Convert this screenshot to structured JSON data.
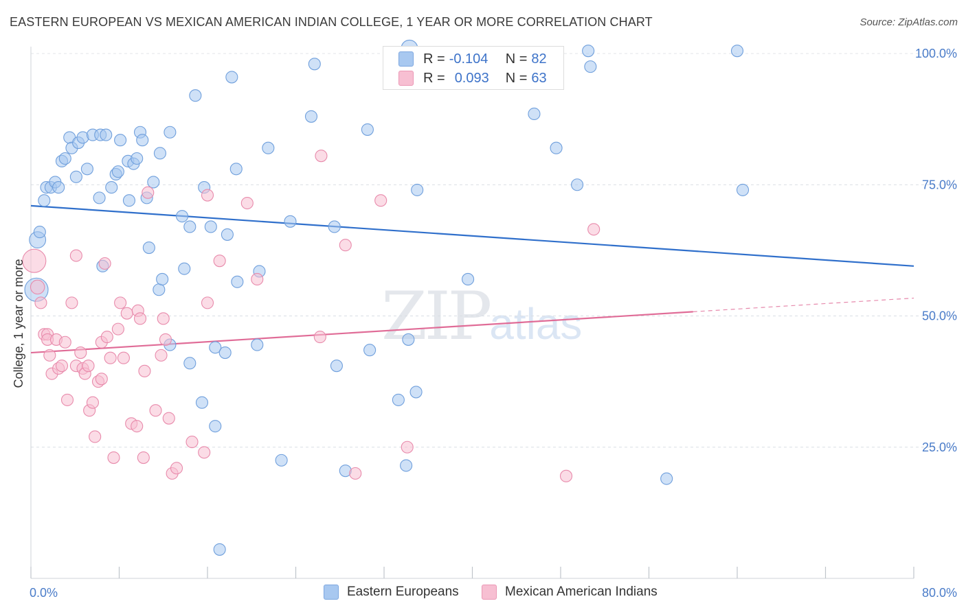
{
  "header": {
    "title": "EASTERN EUROPEAN VS MEXICAN AMERICAN INDIAN COLLEGE, 1 YEAR OR MORE CORRELATION CHART",
    "source": "Source: ZipAtlas.com"
  },
  "watermark": {
    "zip": "ZIP",
    "atlas": "atlas"
  },
  "legend_top": {
    "rows": [
      {
        "r_label": "R =",
        "r_value": "-0.104",
        "n_label": "N =",
        "n_value": "82",
        "color": "#a8c8f0"
      },
      {
        "r_label": "R =",
        "r_value": "0.093",
        "n_label": "N =",
        "n_value": "63",
        "color": "#f7bfd2"
      }
    ]
  },
  "legend_bottom": {
    "items": [
      {
        "label": "Eastern Europeans",
        "color": "#a8c8f0"
      },
      {
        "label": "Mexican American Indians",
        "color": "#f7bfd2"
      }
    ]
  },
  "chart_data": {
    "type": "scatter",
    "title": "EASTERN EUROPEAN VS MEXICAN AMERICAN INDIAN COLLEGE, 1 YEAR OR MORE CORRELATION CHART",
    "xlabel": "",
    "ylabel": "College, 1 year or more",
    "xlim": [
      0,
      80
    ],
    "ylim": [
      0,
      105
    ],
    "x_tick_labels": {
      "min": "0.0%",
      "max": "80.0%"
    },
    "y_ticks": [
      {
        "value": 25,
        "label": "25.0%"
      },
      {
        "value": 50,
        "label": "50.0%"
      },
      {
        "value": 75,
        "label": "75.0%"
      },
      {
        "value": 100,
        "label": "100.0%"
      }
    ],
    "grid": true,
    "series": [
      {
        "name": "Eastern Europeans",
        "color": "#6f9fdc",
        "fill": "#a8c8f0",
        "trend": {
          "x0": 0,
          "y0": 71.0,
          "x1": 80,
          "y1": 59.5
        },
        "points": [
          [
            0.5,
            55,
            2
          ],
          [
            0.6,
            64.5,
            1.4
          ],
          [
            0.8,
            66,
            1
          ],
          [
            1.2,
            72,
            1
          ],
          [
            1.4,
            74.5,
            1
          ],
          [
            1.8,
            74.5,
            1
          ],
          [
            2.2,
            75.5,
            1
          ],
          [
            2.5,
            74.5,
            1
          ],
          [
            2.8,
            79.5,
            1
          ],
          [
            3.1,
            80,
            1
          ],
          [
            3.5,
            84,
            1
          ],
          [
            3.7,
            82,
            1
          ],
          [
            4.1,
            76.5,
            1
          ],
          [
            4.3,
            83,
            1
          ],
          [
            4.7,
            84,
            1
          ],
          [
            5.1,
            78,
            1
          ],
          [
            5.6,
            84.5,
            1
          ],
          [
            6.3,
            84.5,
            1
          ],
          [
            6.2,
            72.5,
            1
          ],
          [
            6.5,
            59.5,
            1
          ],
          [
            6.8,
            84.5,
            1
          ],
          [
            7.3,
            74.5,
            1
          ],
          [
            7.7,
            77,
            1
          ],
          [
            7.9,
            77.5,
            1
          ],
          [
            8.1,
            83.5,
            1
          ],
          [
            8.8,
            79.5,
            1
          ],
          [
            8.9,
            72,
            1
          ],
          [
            9.3,
            79,
            1
          ],
          [
            9.6,
            80,
            1
          ],
          [
            9.9,
            85,
            1
          ],
          [
            10.1,
            83.5,
            1
          ],
          [
            10.5,
            72.5,
            1
          ],
          [
            10.7,
            63,
            1
          ],
          [
            11.1,
            75.5,
            1
          ],
          [
            11.6,
            55,
            1
          ],
          [
            11.7,
            81,
            1
          ],
          [
            11.9,
            57,
            1
          ],
          [
            12.6,
            85,
            1
          ],
          [
            12.6,
            44.5,
            1
          ],
          [
            13.7,
            69,
            1
          ],
          [
            13.9,
            59,
            1
          ],
          [
            14.4,
            41,
            1
          ],
          [
            14.9,
            92,
            1
          ],
          [
            15.5,
            33.5,
            1
          ],
          [
            15.7,
            74.5,
            1
          ],
          [
            16.3,
            67,
            1
          ],
          [
            16.7,
            29,
            1
          ],
          [
            16.7,
            44,
            1
          ],
          [
            17.1,
            5.5,
            1
          ],
          [
            17.6,
            43,
            1
          ],
          [
            17.8,
            65.5,
            1
          ],
          [
            18.2,
            95.5,
            1
          ],
          [
            18.6,
            78,
            1
          ],
          [
            18.7,
            56.5,
            1
          ],
          [
            20.5,
            44.5,
            1
          ],
          [
            20.7,
            58.5,
            1
          ],
          [
            21.5,
            82,
            1
          ],
          [
            22.7,
            22.5,
            1
          ],
          [
            23.5,
            68,
            1
          ],
          [
            25.4,
            88,
            1
          ],
          [
            25.7,
            98,
            1
          ],
          [
            27.5,
            67,
            1
          ],
          [
            27.7,
            40.5,
            1
          ],
          [
            28.5,
            20.5,
            1
          ],
          [
            30.5,
            85.5,
            1
          ],
          [
            30.7,
            43.5,
            1
          ],
          [
            33.3,
            34,
            1
          ],
          [
            34.0,
            21.5,
            1
          ],
          [
            34.2,
            45.5,
            1
          ],
          [
            34.3,
            101,
            1.4
          ],
          [
            34.9,
            35.5,
            1
          ],
          [
            35.0,
            74,
            1
          ],
          [
            39.6,
            57,
            1
          ],
          [
            45.6,
            88.5,
            1
          ],
          [
            47.6,
            82,
            1
          ],
          [
            49.5,
            75,
            1
          ],
          [
            50.5,
            100.5,
            1
          ],
          [
            50.7,
            97.5,
            1
          ],
          [
            57.6,
            19,
            1
          ],
          [
            64.0,
            100.5,
            1
          ],
          [
            64.5,
            74,
            1
          ],
          [
            14.4,
            67,
            1
          ]
        ]
      },
      {
        "name": "Mexican American Indians",
        "color": "#e88aab",
        "fill": "#f7bfd2",
        "trend": {
          "x0": 0,
          "y0": 43.0,
          "x1": 60,
          "y1": 50.8,
          "dash_to": {
            "x": 80,
            "y": 53.4
          }
        },
        "points": [
          [
            0.3,
            60.5,
            2
          ],
          [
            0.6,
            55.5,
            1.2
          ],
          [
            0.9,
            52.5,
            1
          ],
          [
            1.2,
            46.5,
            1
          ],
          [
            1.5,
            46.5,
            1
          ],
          [
            1.5,
            45.5,
            1
          ],
          [
            1.7,
            42.5,
            1
          ],
          [
            1.9,
            39,
            1
          ],
          [
            2.3,
            45.5,
            1
          ],
          [
            2.5,
            40,
            1
          ],
          [
            2.8,
            40.5,
            1
          ],
          [
            3.1,
            45,
            1
          ],
          [
            3.3,
            34,
            1
          ],
          [
            3.7,
            52.5,
            1
          ],
          [
            4.1,
            40.5,
            1
          ],
          [
            4.1,
            61.5,
            1
          ],
          [
            4.5,
            43,
            1
          ],
          [
            4.7,
            40,
            1
          ],
          [
            4.9,
            39,
            1
          ],
          [
            5.2,
            40.5,
            1
          ],
          [
            5.3,
            32,
            1
          ],
          [
            5.6,
            33.5,
            1
          ],
          [
            5.8,
            27,
            1
          ],
          [
            6.1,
            37.5,
            1
          ],
          [
            6.4,
            38,
            1
          ],
          [
            6.4,
            45,
            1
          ],
          [
            6.7,
            60,
            1
          ],
          [
            6.9,
            46,
            1
          ],
          [
            7.2,
            42,
            1
          ],
          [
            7.5,
            23,
            1
          ],
          [
            7.9,
            47.5,
            1
          ],
          [
            8.1,
            52.5,
            1
          ],
          [
            8.4,
            42,
            1
          ],
          [
            8.7,
            50.5,
            1
          ],
          [
            9.1,
            29.5,
            1
          ],
          [
            9.6,
            29,
            1
          ],
          [
            9.7,
            51,
            1
          ],
          [
            9.9,
            49.5,
            1
          ],
          [
            10.2,
            23,
            1
          ],
          [
            10.3,
            39.5,
            1
          ],
          [
            10.6,
            73.5,
            1
          ],
          [
            11.3,
            32,
            1
          ],
          [
            11.8,
            42.5,
            1
          ],
          [
            12.0,
            49.5,
            1
          ],
          [
            12.2,
            45.5,
            1
          ],
          [
            12.5,
            30.5,
            1
          ],
          [
            12.8,
            20,
            1
          ],
          [
            13.2,
            21,
            1
          ],
          [
            14.6,
            26,
            1
          ],
          [
            15.7,
            24,
            1
          ],
          [
            16.0,
            73,
            1
          ],
          [
            16.0,
            52.5,
            1
          ],
          [
            17.1,
            60.5,
            1
          ],
          [
            19.6,
            71.5,
            1
          ],
          [
            20.5,
            57,
            1
          ],
          [
            26.2,
            46,
            1
          ],
          [
            26.3,
            80.5,
            1
          ],
          [
            28.5,
            63.5,
            1
          ],
          [
            29.4,
            20,
            1
          ],
          [
            31.7,
            72,
            1
          ],
          [
            34.1,
            25,
            1
          ],
          [
            48.5,
            19.5,
            1
          ],
          [
            51.0,
            66.5,
            1
          ]
        ]
      }
    ]
  }
}
